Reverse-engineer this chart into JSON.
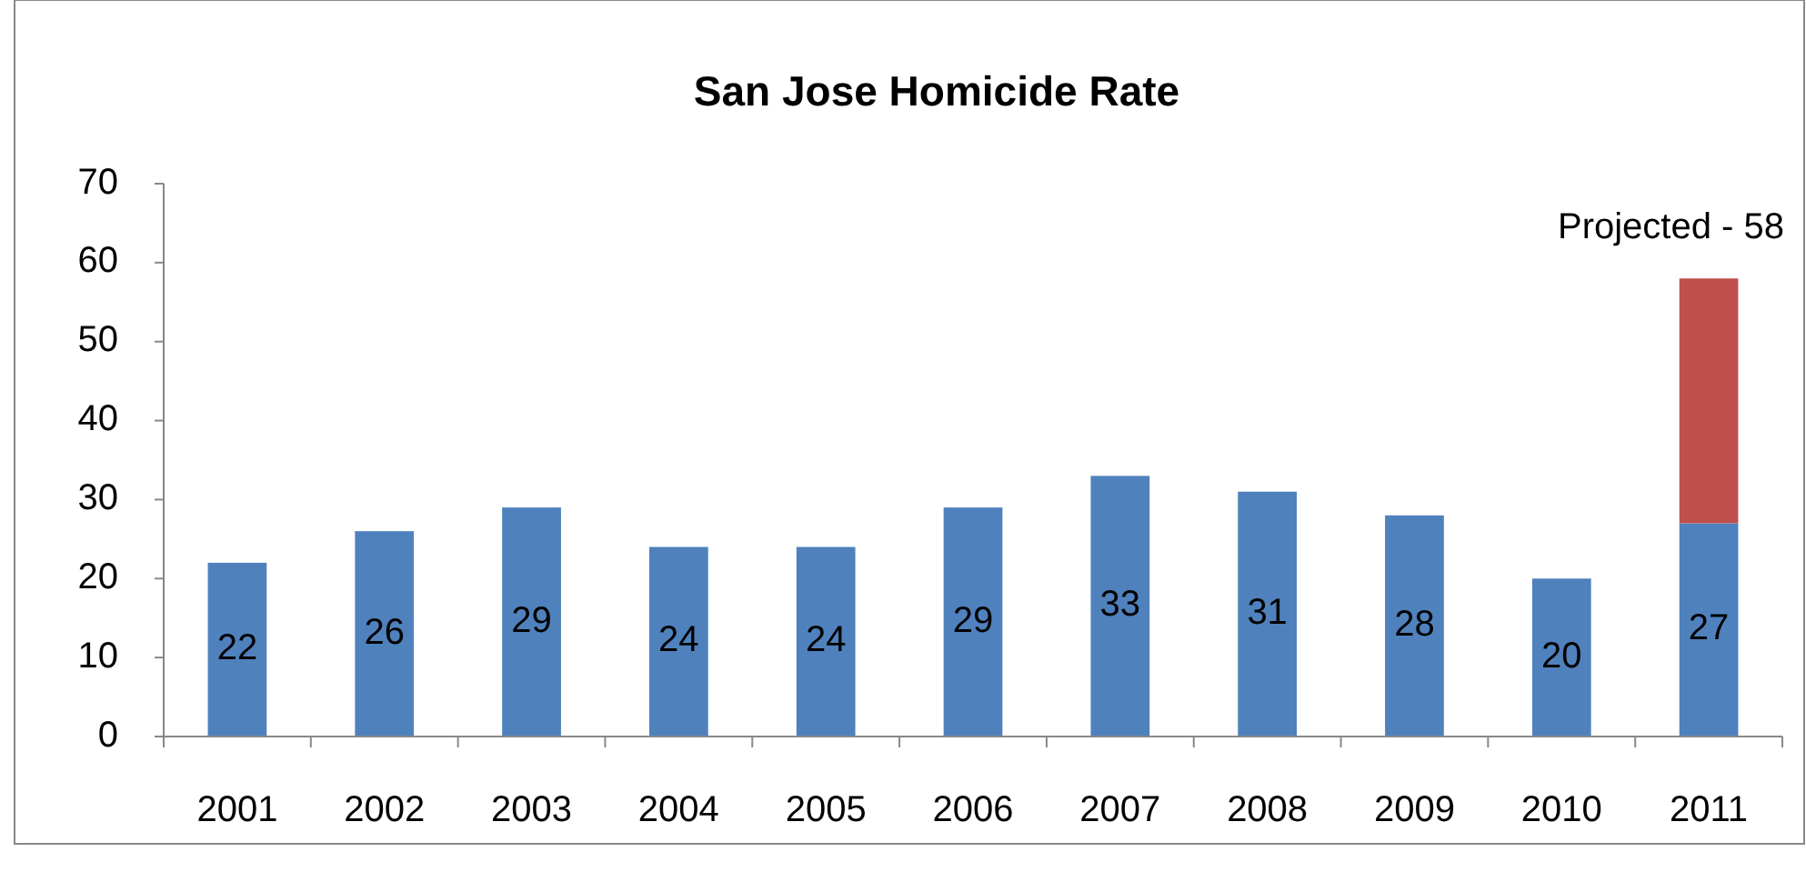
{
  "chart_data": {
    "type": "bar",
    "title": "San Jose Homicide Rate",
    "categories": [
      "2001",
      "2002",
      "2003",
      "2004",
      "2005",
      "2006",
      "2007",
      "2008",
      "2009",
      "2010",
      "2011"
    ],
    "stacked": true,
    "series": [
      {
        "color": "#4f81bd",
        "values": [
          22,
          26,
          29,
          24,
          24,
          29,
          33,
          31,
          28,
          20,
          27
        ],
        "value_labels": [
          "22",
          "26",
          "29",
          "24",
          "24",
          "29",
          "33",
          "31",
          "28",
          "20",
          "27"
        ]
      },
      {
        "color": "#c0504d",
        "values": [
          null,
          null,
          null,
          null,
          null,
          null,
          null,
          null,
          null,
          null,
          31
        ]
      }
    ],
    "ylim": [
      0,
      70
    ],
    "yticks": [
      0,
      10,
      20,
      30,
      40,
      50,
      60,
      70
    ],
    "grid": false,
    "annotations": [
      {
        "text": "Projected - 58",
        "x": "2011",
        "y": 58
      }
    ]
  }
}
